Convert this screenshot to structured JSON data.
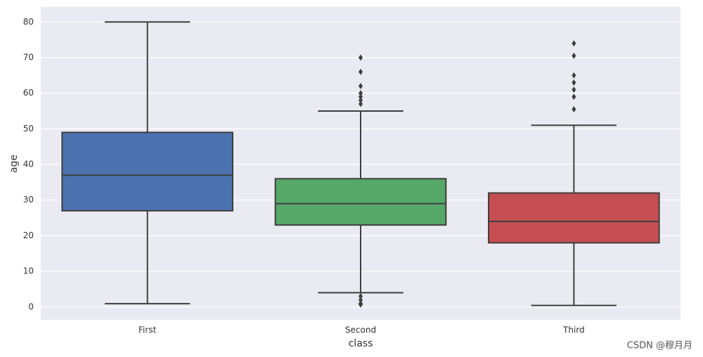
{
  "chart_data": {
    "type": "box",
    "x_label": "class",
    "y_label": "age",
    "categories": [
      "First",
      "Second",
      "Third"
    ],
    "series": [
      {
        "color": "#4c72b0",
        "whisker_low": 0.92,
        "q1": 27,
        "median": 37,
        "q3": 49,
        "whisker_high": 80,
        "outliers": []
      },
      {
        "color": "#55a868",
        "whisker_low": 4,
        "q1": 23,
        "median": 29,
        "q3": 36,
        "whisker_high": 55,
        "outliers": [
          57,
          58,
          59,
          60,
          62,
          66,
          70,
          3,
          2,
          1,
          0.83,
          0.67
        ]
      },
      {
        "color": "#c44e52",
        "whisker_low": 0.42,
        "q1": 18,
        "median": 24,
        "q3": 32,
        "whisker_high": 51,
        "outliers": [
          55.5,
          59,
          61,
          63,
          65,
          70.5,
          74
        ]
      }
    ],
    "ylim": [
      -3.6,
      84.2
    ],
    "yticks": [
      0,
      10,
      20,
      30,
      40,
      50,
      60,
      70,
      80
    ],
    "grid": true
  },
  "watermark": "CSDN @穆月月"
}
